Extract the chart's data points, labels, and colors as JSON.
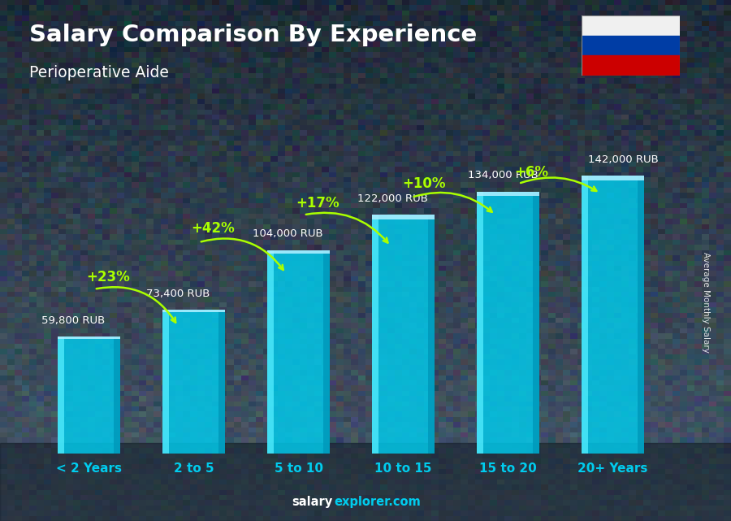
{
  "title": "Salary Comparison By Experience",
  "subtitle": "Perioperative Aide",
  "categories": [
    "< 2 Years",
    "2 to 5",
    "5 to 10",
    "10 to 15",
    "15 to 20",
    "20+ Years"
  ],
  "values": [
    59800,
    73400,
    104000,
    122000,
    134000,
    142000
  ],
  "value_labels": [
    "59,800 RUB",
    "73,400 RUB",
    "104,000 RUB",
    "122,000 RUB",
    "134,000 RUB",
    "142,000 RUB"
  ],
  "pct_changes": [
    "+23%",
    "+42%",
    "+17%",
    "+10%",
    "+6%"
  ],
  "bar_color_main": "#00CCEE",
  "bar_color_light": "#55EEFF",
  "bar_color_dark": "#0099BB",
  "bar_color_top": "#AAEEFF",
  "pct_color": "#AAFF00",
  "arrow_color": "#AAFF00",
  "title_color": "#ffffff",
  "subtitle_color": "#ffffff",
  "label_color": "#ffffff",
  "xtick_color": "#00CCEE",
  "ylabel": "Average Monthly Salary",
  "footer_left": "salary",
  "footer_right": "explorer.com",
  "footer_left_color": "#ffffff",
  "footer_right_color": "#00CCEE",
  "ylim": [
    0,
    160000
  ],
  "figsize": [
    9.0,
    6.41
  ],
  "bg_color_top": "#3a4a5a",
  "bg_color_bottom": "#1a2530",
  "bar_width": 0.6,
  "flag_white": "#f0f0f0",
  "flag_blue": "#003DA5",
  "flag_red": "#CC0000"
}
